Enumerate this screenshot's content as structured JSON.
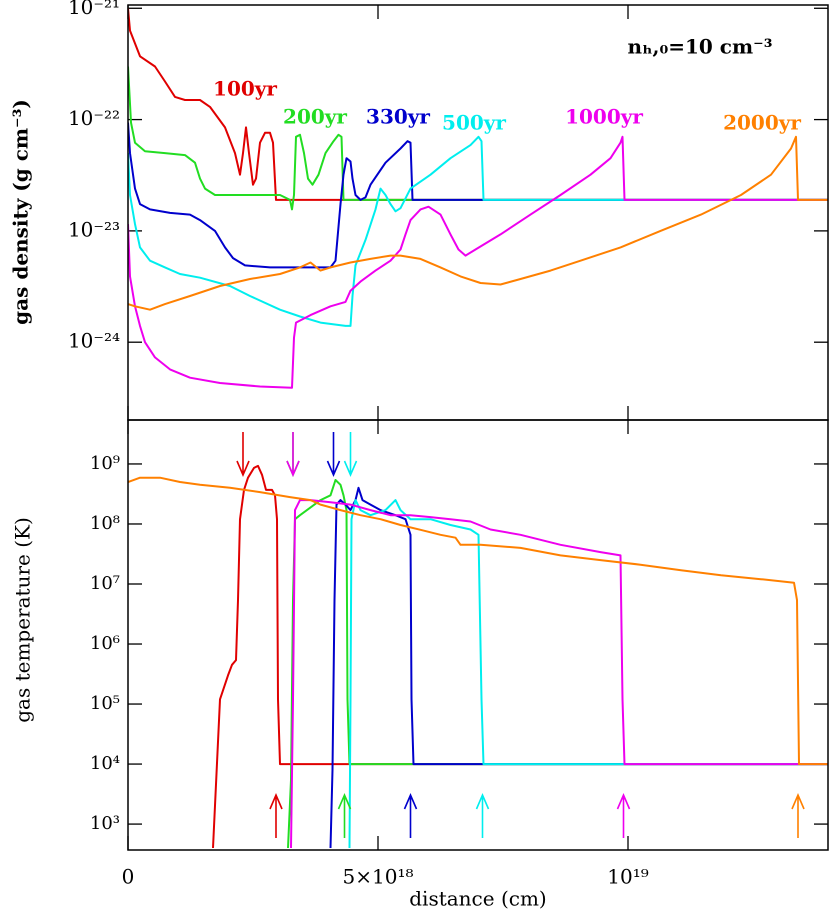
{
  "chart_data": [
    {
      "type": "line",
      "ylabel": "gas density (g cm⁻³)",
      "annotation": "nₕ,₀=10 cm⁻³",
      "log_y": true,
      "ylim": [
        2e-25,
        1.07e-21
      ],
      "yticks": [
        {
          "value": 1e-21,
          "label": "10⁻²¹"
        },
        {
          "value": 1e-22,
          "label": "10⁻²²"
        },
        {
          "value": 1e-23,
          "label": "10⁻²³"
        },
        {
          "value": 1e-24,
          "label": "10⁻²⁴"
        }
      ],
      "series": [
        {
          "name": "100yr",
          "color": "#e00000",
          "x": [
            0,
            4e+16,
            2.4e+17,
            5.4e+17,
            7.4e+17,
            9.4e+17,
            1.14e+18,
            1.44e+18,
            1.64e+18,
            1.94e+18,
            2.14e+18,
            2.24e+18,
            2.3e+18,
            2.36e+18,
            2.42e+18,
            2.5e+18,
            2.56e+18,
            2.64e+18,
            2.74e+18,
            2.84e+18,
            2.9e+18,
            2.96e+18,
            3e+18,
            1.4e+19
          ],
          "values": [
            1e-21,
            6.3e-22,
            3.7e-22,
            3e-22,
            2.2e-22,
            1.6e-22,
            1.5e-22,
            1.5e-22,
            1.3e-22,
            8.5e-23,
            5e-23,
            3.2e-23,
            5e-23,
            8.5e-23,
            5e-23,
            2.6e-23,
            2.95e-23,
            6.2e-23,
            7.6e-23,
            7.6e-23,
            6.2e-23,
            1.9e-23,
            1.9e-23,
            1.9e-23
          ]
        },
        {
          "name": "200yr",
          "color": "#22dd22",
          "x": [
            0,
            6e+16,
            1.4e+17,
            3.4e+17,
            7.4e+17,
            1.14e+18,
            1.34e+18,
            1.44e+18,
            1.54e+18,
            1.74e+18,
            2.24e+18,
            2.64e+18,
            3.04e+18,
            3.24e+18,
            3.28e+18,
            3.32e+18,
            3.36e+18,
            3.44e+18,
            3.52e+18,
            3.6e+18,
            3.69e+18,
            3.81e+18,
            3.95e+18,
            4.11e+18,
            4.21e+18,
            4.27e+18,
            4.31e+18,
            1.4e+19
          ],
          "values": [
            3e-22,
            9.4e-23,
            6.2e-23,
            5.2e-23,
            5e-23,
            4.8e-23,
            4.1e-23,
            2.95e-23,
            2.4e-23,
            2.1e-23,
            2.1e-23,
            2.1e-23,
            2.1e-23,
            1.9e-23,
            1.56e-23,
            2.1e-23,
            7e-23,
            7.3e-23,
            5e-23,
            2.95e-23,
            2.6e-23,
            3.2e-23,
            5e-23,
            6.4e-23,
            7.3e-23,
            7e-23,
            1.9e-23,
            1.9e-23
          ]
        },
        {
          "name": "330yr",
          "color": "#0000cc",
          "x": [
            0,
            4e+16,
            1.4e+17,
            2.4e+17,
            4.4e+17,
            8.4e+17,
            1.24e+18,
            1.44e+18,
            1.74e+18,
            1.94e+18,
            2.1e+18,
            2.34e+18,
            2.84e+18,
            3.44e+18,
            4.05e+18,
            4.15e+18,
            4.25e+18,
            4.31e+18,
            4.37e+18,
            4.45e+18,
            4.49e+18,
            4.55e+18,
            4.65e+18,
            4.75e+18,
            4.85e+18,
            5.15e+18,
            5.45e+18,
            5.59e+18,
            5.65e+18,
            5.69e+18,
            1.4e+19
          ],
          "values": [
            9.4e-23,
            5e-23,
            2.4e-23,
            1.74e-23,
            1.56e-23,
            1.45e-23,
            1.4e-23,
            1.25e-23,
            1e-23,
            7.1e-24,
            5.7e-24,
            4.9e-24,
            4.7e-24,
            4.7e-24,
            4.7e-24,
            5.4e-24,
            1.74e-23,
            3.2e-23,
            4.5e-23,
            4.2e-23,
            2.95e-23,
            2.1e-23,
            1.9e-23,
            2e-23,
            2.6e-23,
            4.1e-23,
            5.5e-23,
            6.4e-23,
            6.2e-23,
            1.9e-23,
            1.9e-23
          ]
        },
        {
          "name": "500yr",
          "color": "#00eeee",
          "x": [
            0,
            4e+16,
            1.4e+17,
            2.4e+17,
            4.4e+17,
            7.4e+17,
            1.04e+18,
            1.44e+18,
            2.04e+18,
            2.44e+18,
            3.04e+18,
            3.44e+18,
            3.85e+18,
            4.35e+18,
            4.45e+18,
            4.49e+18,
            4.55e+18,
            4.75e+18,
            4.95e+18,
            5.05e+18,
            5.15e+18,
            5.25e+18,
            5.35e+18,
            5.45e+18,
            5.65e+18,
            6.05e+18,
            6.45e+18,
            6.85e+18,
            7.01e+18,
            7.07e+18,
            7.11e+18,
            1.4e+19
          ],
          "values": [
            5e-23,
            2.1e-23,
            1.15e-23,
            7.1e-24,
            5.4e-24,
            4.7e-24,
            4.1e-24,
            3.8e-24,
            3.2e-24,
            2.6e-24,
            1.96e-24,
            1.7e-24,
            1.5e-24,
            1.4e-24,
            1.4e-24,
            2.6e-24,
            4.9e-24,
            8.3e-24,
            1.56e-23,
            2.4e-23,
            2.1e-23,
            1.74e-23,
            1.5e-23,
            1.6e-23,
            2.4e-23,
            3.2e-23,
            4.5e-23,
            5.9e-23,
            7e-23,
            6.4e-23,
            1.9e-23,
            1.9e-23
          ]
        },
        {
          "name": "1000yr",
          "color": "#ee00ee",
          "x": [
            0,
            4e+16,
            1.4e+17,
            2.4e+17,
            3.4e+17,
            5.4e+17,
            8.4e+17,
            1.24e+18,
            1.84e+18,
            2.64e+18,
            3.28e+18,
            3.32e+18,
            3.36e+18,
            3.65e+18,
            4.05e+18,
            4.35e+18,
            4.45e+18,
            4.65e+18,
            4.95e+18,
            5.25e+18,
            5.45e+18,
            5.55e+18,
            5.65e+18,
            5.85e+18,
            6.01e+18,
            6.25e+18,
            6.45e+18,
            6.61e+18,
            6.75e+18,
            6.95e+18,
            7.45e+18,
            8.05e+18,
            8.65e+18,
            9.25e+18,
            9.65e+18,
            9.85e+18,
            9.89e+18,
            9.93e+18,
            1.4e+19
          ],
          "values": [
            1.15e-23,
            3.9e-24,
            2.1e-24,
            1.4e-24,
            1e-24,
            7.3e-25,
            5.7e-25,
            4.8e-25,
            4.3e-25,
            4e-25,
            3.9e-25,
            1.1e-24,
            1.5e-24,
            1.75e-24,
            2.1e-24,
            2.3e-24,
            2.9e-24,
            3.5e-24,
            4.4e-24,
            5.4e-24,
            6.8e-24,
            9.3e-24,
            1.25e-23,
            1.56e-23,
            1.65e-23,
            1.4e-23,
            9.3e-24,
            6.8e-24,
            6e-24,
            6.8e-24,
            9.3e-24,
            1.4e-23,
            2.1e-23,
            3.2e-23,
            4.5e-23,
            6.2e-23,
            7e-23,
            1.9e-23,
            1.9e-23
          ]
        },
        {
          "name": "2000yr",
          "color": "#ff8000",
          "x": [
            0,
            1.4e+17,
            4.4e+17,
            7.4e+17,
            1.24e+18,
            1.84e+18,
            2.44e+18,
            3.04e+18,
            3.44e+18,
            3.65e+18,
            3.77e+18,
            3.85e+18,
            4.05e+18,
            4.45e+18,
            4.85e+18,
            5.25e+18,
            5.45e+18,
            5.85e+18,
            6.25e+18,
            6.65e+18,
            7.05e+18,
            7.45e+18,
            7.85e+18,
            8.45e+18,
            9.05e+18,
            9.85e+18,
            1.065e+19,
            1.146e+19,
            1.226e+19,
            1.286e+19,
            1.326e+19,
            1.336e+19,
            1.34e+19,
            1.4e+19
          ],
          "values": [
            2.2e-24,
            2.1e-24,
            1.96e-24,
            2.2e-24,
            2.6e-24,
            3.2e-24,
            3.7e-24,
            4.1e-24,
            4.7e-24,
            5.2e-24,
            4.7e-24,
            4.4e-24,
            4.7e-24,
            5.2e-24,
            5.6e-24,
            6e-24,
            6e-24,
            5.6e-24,
            4.7e-24,
            3.9e-24,
            3.4e-24,
            3.3e-24,
            3.7e-24,
            4.4e-24,
            5.4e-24,
            7.1e-24,
            1e-23,
            1.4e-23,
            2.1e-23,
            3.2e-23,
            5.5e-23,
            7e-23,
            1.9e-23,
            1.9e-23
          ]
        }
      ]
    },
    {
      "type": "line",
      "ylabel": "gas temperature (K)",
      "xlabel": "distance (cm)",
      "log_y": true,
      "xlim": [
        0,
        1.4e+19
      ],
      "xticks": [
        0,
        {
          "value": 5e+18,
          "label": "5×10¹⁸"
        },
        {
          "value": 1e+19,
          "label": "10¹⁹"
        }
      ],
      "ylim": [
        370,
        5400000000.0
      ],
      "yticks": [
        {
          "value": 1000,
          "label": "10³"
        },
        {
          "value": 10000,
          "label": "10⁴"
        },
        {
          "value": 100000,
          "label": "10⁵"
        },
        {
          "value": 1000000,
          "label": "10⁶"
        },
        {
          "value": 10000000,
          "label": "10⁷"
        },
        {
          "value": 100000000,
          "label": "10⁸"
        },
        {
          "value": 1000000000,
          "label": "10⁹"
        }
      ],
      "series": [
        {
          "color": "#e00000",
          "x": [
            1.7e+18,
            1.84e+18,
            2e+18,
            2.08e+18,
            2.16e+18,
            2.2e+18,
            2.24e+18,
            2.32e+18,
            2.4e+18,
            2.52e+18,
            2.6e+18,
            2.68e+18,
            2.76e+18,
            2.88e+18,
            2.94e+18,
            2.98e+18,
            3e+18,
            3.04e+18,
            1.4e+19
          ],
          "values": [
            400,
            120000.0,
            300000.0,
            450000.0,
            540000.0,
            5400000.0,
            120000000.0,
            370000000.0,
            590000000.0,
            860000000.0,
            930000000.0,
            660000000.0,
            370000000.0,
            370000000.0,
            300000000.0,
            120000000.0,
            120000.0,
            10000.0,
            10000.0
          ]
        },
        {
          "color": "#22dd22",
          "x": [
            3.2e+18,
            3.26e+18,
            3.3e+18,
            3.34e+18,
            3.44e+18,
            3.85e+18,
            4.05e+18,
            4.15e+18,
            4.25e+18,
            4.31e+18,
            4.37e+18,
            4.39e+18,
            4.43e+18,
            1.4e+19
          ],
          "values": [
            400,
            5400.0,
            5400000.0,
            120000000.0,
            140000000.0,
            250000000.0,
            300000000.0,
            540000000.0,
            450000000.0,
            300000000.0,
            170000000.0,
            120000.0,
            10000.0,
            10000.0
          ]
        },
        {
          "color": "#0000cc",
          "x": [
            4.05e+18,
            4.09e+18,
            4.13e+18,
            4.17e+18,
            4.25e+18,
            4.35e+18,
            4.45e+18,
            4.55e+18,
            4.61e+18,
            4.69e+18,
            4.85e+18,
            5.05e+18,
            5.35e+18,
            5.55e+18,
            5.65e+18,
            5.67e+18,
            5.71e+18,
            1.4e+19
          ],
          "values": [
            400,
            8000.0,
            5400000.0,
            210000000.0,
            250000000.0,
            210000000.0,
            170000000.0,
            250000000.0,
            400000000.0,
            250000000.0,
            210000000.0,
            170000000.0,
            140000000.0,
            120000000.0,
            66000000.0,
            120000.0,
            10000.0,
            10000.0
          ]
        },
        {
          "color": "#00eeee",
          "x": [
            4.43e+18,
            4.45e+18,
            4.47e+18,
            4.55e+18,
            4.65e+18,
            4.85e+18,
            5.15e+18,
            5.35e+18,
            5.45e+18,
            5.65e+18,
            6.05e+18,
            6.45e+18,
            6.85e+18,
            7.01e+18,
            7.07e+18,
            7.11e+18,
            1.4e+19
          ],
          "values": [
            400,
            120000.0,
            120000000.0,
            250000000.0,
            170000000.0,
            140000000.0,
            170000000.0,
            250000000.0,
            170000000.0,
            120000000.0,
            120000000.0,
            96000000.0,
            81000000.0,
            66000000.0,
            120000.0,
            10000.0,
            10000.0
          ]
        },
        {
          "color": "#ee00ee",
          "x": [
            3.26e+18,
            3.3e+18,
            3.34e+18,
            3.44e+18,
            3.65e+18,
            4.05e+18,
            4.45e+18,
            4.85e+18,
            5.25e+18,
            5.65e+18,
            6.05e+18,
            6.45e+18,
            6.85e+18,
            7.25e+18,
            7.85e+18,
            8.65e+18,
            9.45e+18,
            9.85e+18,
            9.89e+18,
            9.93e+18,
            1.4e+19
          ],
          "values": [
            400,
            120000.0,
            170000000.0,
            250000000.0,
            250000000.0,
            230000000.0,
            210000000.0,
            170000000.0,
            140000000.0,
            140000000.0,
            130000000.0,
            120000000.0,
            110000000.0,
            81000000.0,
            66000000.0,
            45000000.0,
            34000000.0,
            30000000.0,
            120000.0,
            10000.0,
            10000.0
          ]
        },
        {
          "color": "#ff8000",
          "x": [
            0,
            2.4e+17,
            6.4e+17,
            1.04e+18,
            1.44e+18,
            2.04e+18,
            2.64e+18,
            3.24e+18,
            3.65e+18,
            3.85e+18,
            4.25e+18,
            4.65e+18,
            5.05e+18,
            5.45e+18,
            5.85e+18,
            6.25e+18,
            6.55e+18,
            6.65e+18,
            7.05e+18,
            7.85e+18,
            8.65e+18,
            9.45e+18,
            1.025e+19,
            1.106e+19,
            1.186e+19,
            1.266e+19,
            1.332e+19,
            1.338e+19,
            1.342e+19,
            1.4e+19
          ],
          "values": [
            500000000.0,
            590000000.0,
            590000000.0,
            500000000.0,
            450000000.0,
            400000000.0,
            340000000.0,
            280000000.0,
            250000000.0,
            210000000.0,
            170000000.0,
            140000000.0,
            120000000.0,
            96000000.0,
            80000000.0,
            66000000.0,
            59000000.0,
            45000000.0,
            45000000.0,
            40000000.0,
            30000000.0,
            25000000.0,
            21000000.0,
            17000000.0,
            14000000.0,
            12000000.0,
            10500000.0,
            5400000.0,
            10000.0,
            10000.0
          ]
        }
      ],
      "arrows": [
        {
          "x": 2.3e+18,
          "color": "#e00000",
          "direction": "down"
        },
        {
          "x": 3.3e+18,
          "color": "#22dd22",
          "direction": "down"
        },
        {
          "x": 3.3e+18,
          "color": "#ee00ee",
          "direction": "down"
        },
        {
          "x": 4.11e+18,
          "color": "#0000cc",
          "direction": "down"
        },
        {
          "x": 4.45e+18,
          "color": "#00eeee",
          "direction": "down"
        },
        {
          "x": 2.96e+18,
          "color": "#e00000",
          "direction": "up"
        },
        {
          "x": 4.33e+18,
          "color": "#22dd22",
          "direction": "up"
        },
        {
          "x": 5.65e+18,
          "color": "#0000cc",
          "direction": "up"
        },
        {
          "x": 7.09e+18,
          "color": "#00eeee",
          "direction": "up"
        },
        {
          "x": 9.91e+18,
          "color": "#ee00ee",
          "direction": "up"
        },
        {
          "x": 1.34e+19,
          "color": "#ff8000",
          "direction": "up"
        }
      ]
    }
  ]
}
